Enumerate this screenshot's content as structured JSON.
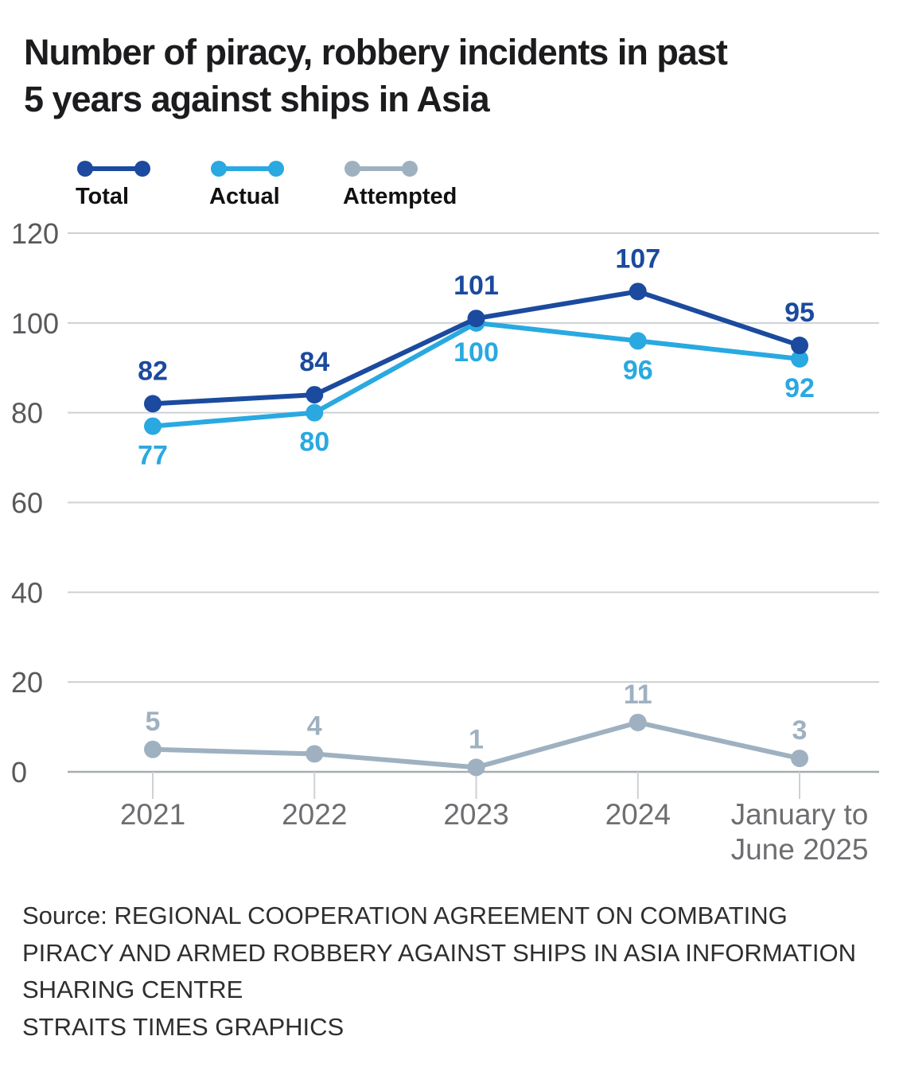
{
  "title": "Number of piracy, robbery incidents in past\n5 years against ships in Asia",
  "source": {
    "lines": [
      "Source: REGIONAL COOPERATION AGREEMENT ON COMBATING",
      "PIRACY AND ARMED ROBBERY AGAINST SHIPS IN ASIA INFORMATION",
      "SHARING CENTRE",
      "STRAITS TIMES GRAPHICS"
    ]
  },
  "chart_data": {
    "type": "line",
    "title": "Number of piracy, robbery incidents in past 5 years against ships in Asia",
    "categories": [
      "2021",
      "2022",
      "2023",
      "2024",
      "January to\nJune 2025"
    ],
    "series": [
      {
        "name": "Total",
        "color": "#1b4a9e",
        "values": [
          82,
          84,
          101,
          107,
          95
        ]
      },
      {
        "name": "Actual",
        "color": "#29a9e0",
        "values": [
          77,
          80,
          100,
          96,
          92
        ]
      },
      {
        "name": "Attempted",
        "color": "#9fb1c0",
        "values": [
          5,
          4,
          1,
          11,
          3
        ]
      }
    ],
    "ylim": [
      0,
      120
    ],
    "yticks": [
      0,
      20,
      40,
      60,
      80,
      100,
      120
    ],
    "grid": true,
    "legend_position": "top",
    "xlabel": "",
    "ylabel": "",
    "colors": {
      "grid": "#cdd1d4",
      "zero_axis": "#a6abb0",
      "y_tick_label": "#58595b",
      "x_tick_label": "#6d6e71",
      "title_text": "#1c1c1e",
      "source_text": "#2e2e2e"
    }
  }
}
